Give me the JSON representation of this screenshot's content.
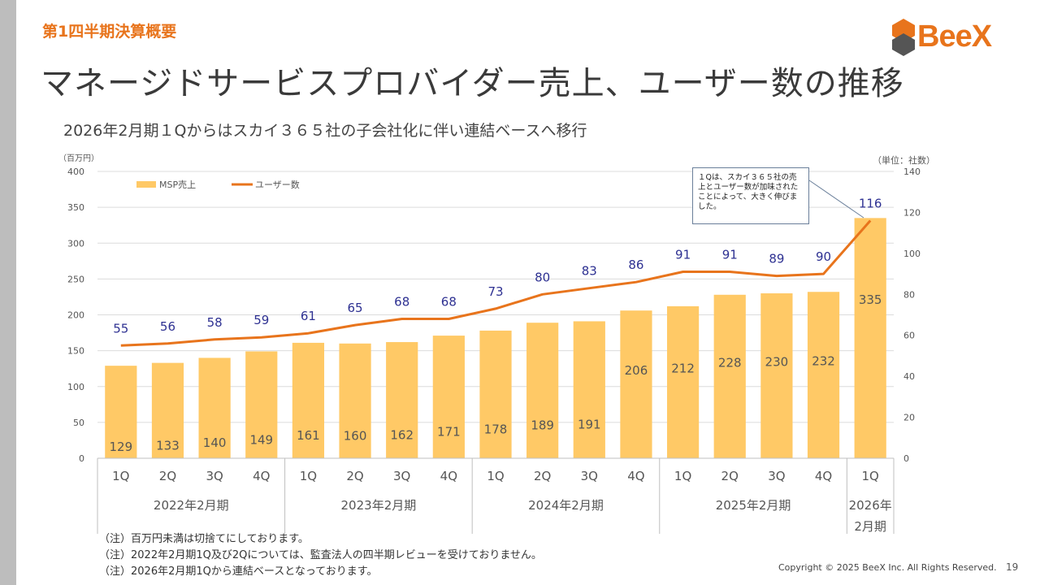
{
  "header": {
    "section_label": "第1四半期決算概要",
    "title": "マネージドサービスプロバイダー売上、ユーザー数の推移",
    "subtitle": "2026年2月期１Qからはスカイ３６５社の子会社化に伴い連結ベースへ移行",
    "logo_text": "BeeX"
  },
  "chart_data": {
    "type": "bar",
    "categories": [
      "1Q",
      "2Q",
      "3Q",
      "4Q",
      "1Q",
      "2Q",
      "3Q",
      "4Q",
      "1Q",
      "2Q",
      "3Q",
      "4Q",
      "1Q",
      "2Q",
      "3Q",
      "4Q",
      "1Q"
    ],
    "groups": [
      {
        "label": "2022年2月期",
        "count": 4
      },
      {
        "label": "2023年2月期",
        "count": 4
      },
      {
        "label": "2024年2月期",
        "count": 4
      },
      {
        "label": "2025年2月期",
        "count": 4
      },
      {
        "label": "2026年\n2月期",
        "count": 1
      }
    ],
    "series": [
      {
        "name": "MSP売上",
        "type": "bar",
        "axis": "left",
        "color": "#ffc966",
        "values": [
          129,
          133,
          140,
          149,
          161,
          160,
          162,
          171,
          178,
          189,
          191,
          206,
          212,
          228,
          230,
          232,
          335
        ]
      },
      {
        "name": "ユーザー数",
        "type": "line",
        "axis": "right",
        "color": "#e8741c",
        "values": [
          55,
          56,
          58,
          59,
          61,
          65,
          68,
          68,
          73,
          80,
          83,
          86,
          91,
          91,
          89,
          90,
          116
        ]
      }
    ],
    "y_left": {
      "unit": "（百万円）",
      "lim": [
        0,
        400
      ],
      "ticks": [
        0,
        50,
        100,
        150,
        200,
        250,
        300,
        350,
        400
      ]
    },
    "y_right": {
      "unit": "（単位：社数）",
      "lim": [
        0,
        140
      ],
      "ticks": [
        0,
        20,
        40,
        60,
        80,
        100,
        120,
        140
      ]
    },
    "grid": true,
    "legend_position": "top-left",
    "annotation": "１Qは、スカイ３６５社の売上とユーザー数が加味されたことによって、大きく伸びました。"
  },
  "notes": [
    "（注）百万円未満は切捨てにしております。",
    "（注）2022年2月期1Q及び2Qについては、監査法人の四半期レビューを受けておりません。",
    "（注）2026年2月期1Qから連結ベースとなっております。"
  ],
  "footer": {
    "copyright": "Copyright © 2025 BeeX Inc. All Rights Reserved.",
    "page_number": "19"
  },
  "colors": {
    "accent": "#e8741c",
    "bar": "#ffc966",
    "user_label": "#2e3192"
  }
}
